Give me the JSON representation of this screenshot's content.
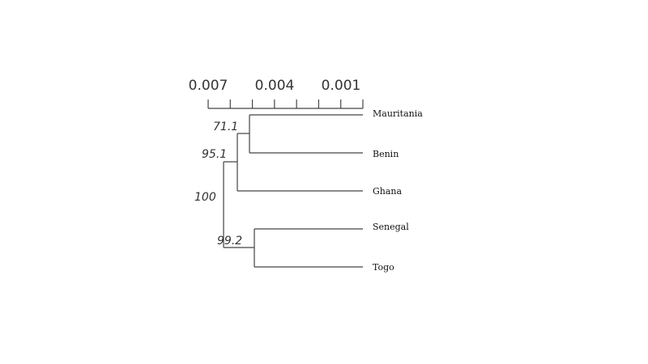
{
  "tree": {
    "scale": {
      "labels": [
        "0.007",
        "0.004",
        "0.001"
      ],
      "tick_count": 8
    },
    "taxa": [
      "Mauritania",
      "Benin",
      "Ghana",
      "Senegal",
      "Togo"
    ],
    "supports": {
      "mauritania_benin": "71.1",
      "mauritania_benin_ghana": "95.1",
      "root": "100",
      "senegal_togo": "99.2"
    },
    "structure": "(((Mauritania,Benin),Ghana),(Senegal,Togo))"
  }
}
